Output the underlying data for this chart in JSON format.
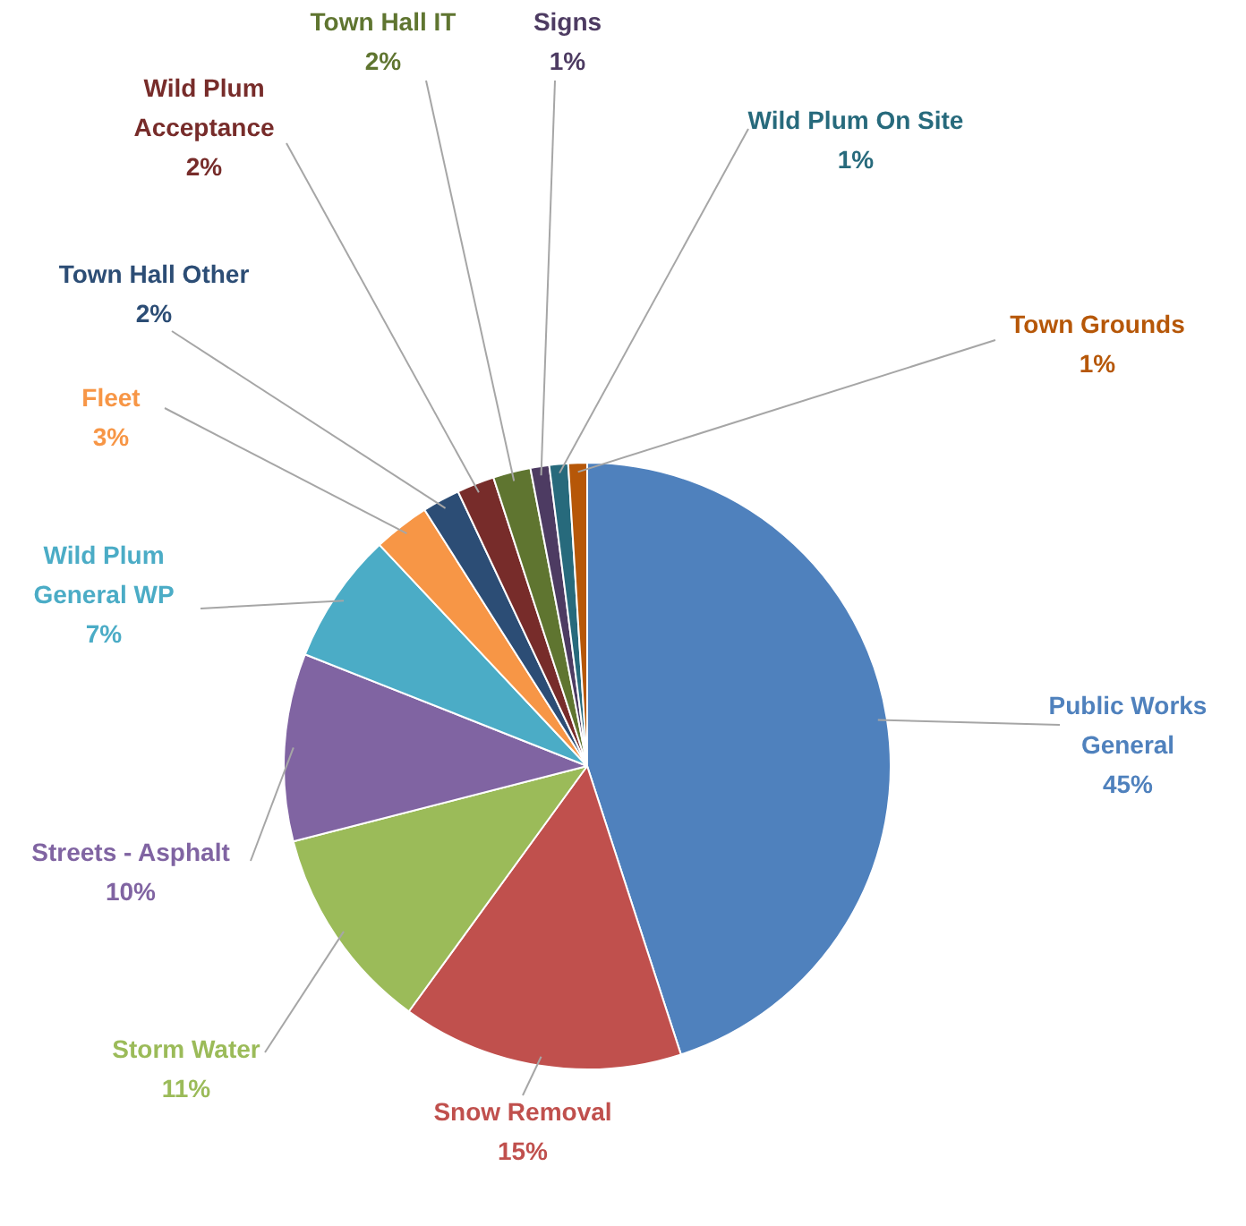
{
  "chart_data": {
    "type": "pie",
    "categories": [
      "Public Works General",
      "Snow Removal",
      "Storm Water",
      "Streets - Asphalt",
      "Wild Plum General WP",
      "Fleet",
      "Town Hall Other",
      "Wild Plum Acceptance",
      "Town Hall IT",
      "Signs",
      "Wild Plum On Site",
      "Town Grounds"
    ],
    "values": [
      45,
      15,
      11,
      10,
      7,
      3,
      2,
      2,
      2,
      1,
      1,
      1
    ],
    "value_labels": [
      "45%",
      "15%",
      "11%",
      "10%",
      "7%",
      "3%",
      "2%",
      "2%",
      "2%",
      "1%",
      "1%",
      "1%"
    ],
    "colors": [
      "#4f81bd",
      "#c0504d",
      "#9bbb59",
      "#8064a2",
      "#4bacc6",
      "#f79646",
      "#2c4d75",
      "#772c2a",
      "#5f7530",
      "#4d3b62",
      "#276a7c",
      "#b65708"
    ],
    "legend": false
  }
}
